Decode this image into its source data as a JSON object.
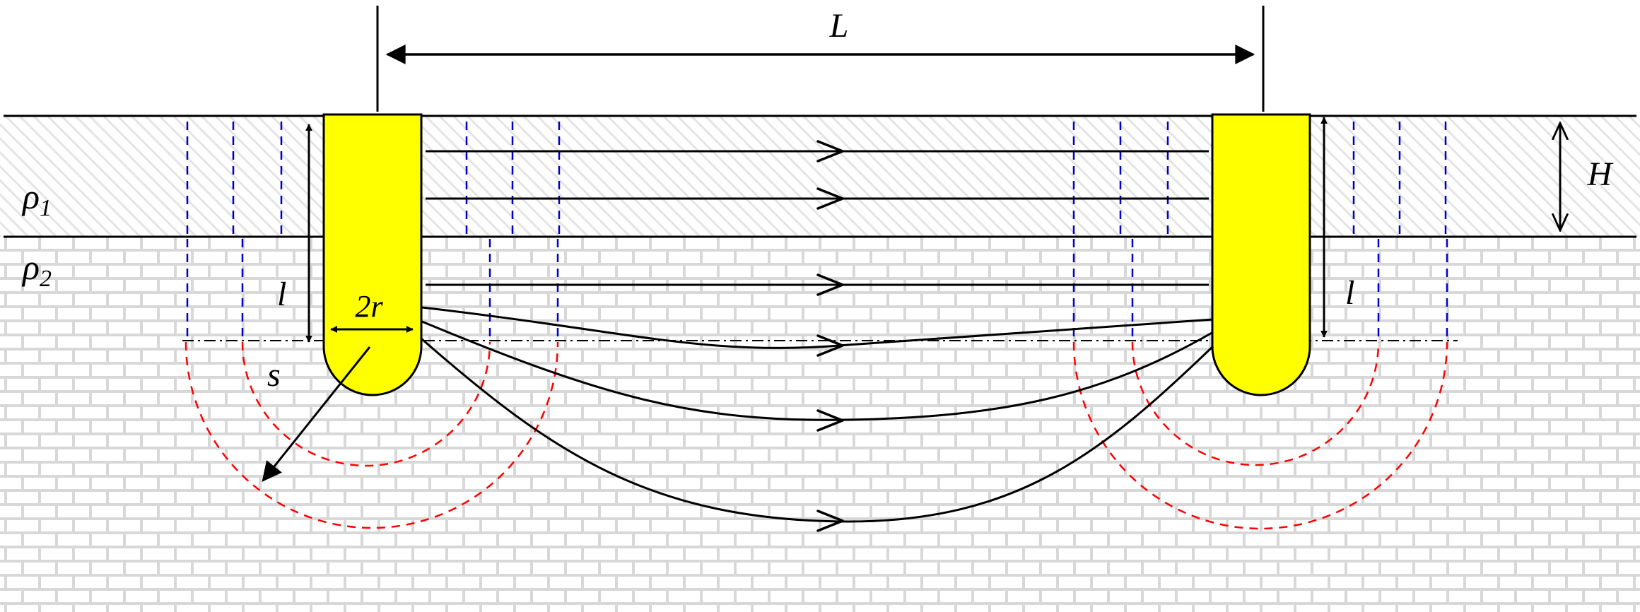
{
  "labels": {
    "distance": "L",
    "layer_thickness": "H",
    "rho1_symbol": "ρ",
    "rho1_sub": "1",
    "rho2_symbol": "ρ",
    "rho2_sub": "2",
    "length_left": "l",
    "length_right": "l",
    "diameter": "2r",
    "radius": "s"
  },
  "colors": {
    "electrode": "#ffff00",
    "equipotential_upper": "#0000cc",
    "equipotential_lower": "#ff0000",
    "current_line": "#000000",
    "layer1_hatch": "#e6e6e6",
    "layer2_brick": "#d9d9d9"
  }
}
